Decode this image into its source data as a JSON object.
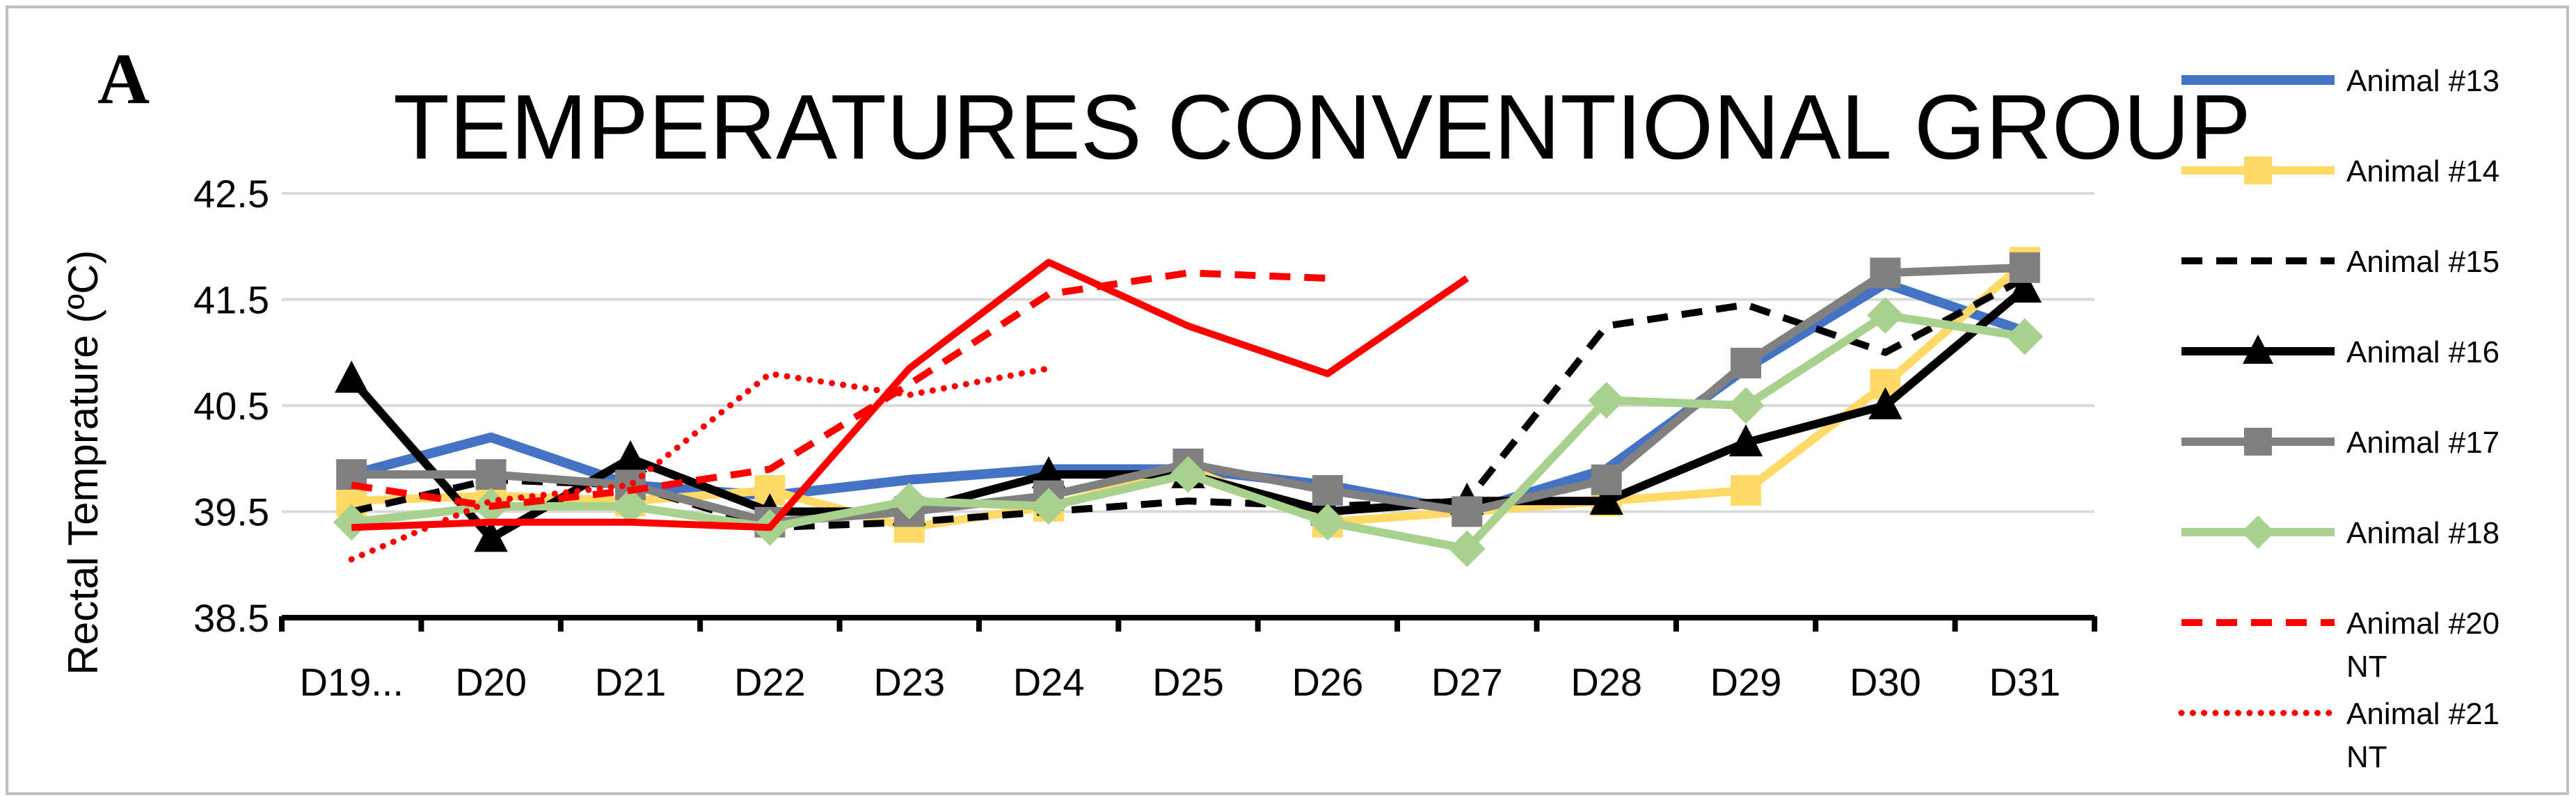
{
  "panel_label": "A",
  "chart_data": {
    "type": "line",
    "title": "TEMPERATURES CONVENTIONAL GROUP",
    "xlabel": "",
    "ylabel": "Rectal Temprature (ºC)",
    "ylim": [
      38.5,
      42.5
    ],
    "yticks": [
      "42.5",
      "41.5",
      "40.5",
      "39.5",
      "38.5"
    ],
    "grid": true,
    "legend_position": "right",
    "categories": [
      "D19...",
      "D20",
      "D21",
      "D22",
      "D23",
      "D24",
      "D25",
      "D26",
      "D27",
      "D28",
      "D29",
      "D30",
      "D31"
    ],
    "series": [
      {
        "name": "Animal #13",
        "color": "#4472c4",
        "dash": "solid",
        "width": 14,
        "marker": "none",
        "values": [
          39.85,
          40.2,
          39.75,
          39.65,
          39.8,
          39.9,
          39.9,
          39.75,
          39.5,
          39.9,
          40.85,
          41.65,
          41.2
        ]
      },
      {
        "name": "Animal #14",
        "color": "#ffd966",
        "dash": "solid",
        "width": 12,
        "marker": "square",
        "values": [
          39.6,
          39.65,
          39.6,
          39.7,
          39.35,
          39.55,
          39.9,
          39.4,
          39.5,
          39.6,
          39.7,
          40.7,
          41.85
        ]
      },
      {
        "name": "Animal #15",
        "color": "#000000",
        "dash": "dashed",
        "width": 10,
        "marker": "none",
        "values": [
          39.5,
          39.8,
          39.75,
          39.35,
          39.4,
          39.5,
          39.6,
          39.55,
          39.6,
          41.25,
          41.45,
          41.0,
          41.7
        ]
      },
      {
        "name": "Animal #16",
        "color": "#000000",
        "dash": "solid",
        "width": 12,
        "marker": "triangle",
        "values": [
          40.75,
          39.25,
          40.0,
          39.5,
          39.5,
          39.85,
          39.85,
          39.5,
          39.6,
          39.6,
          40.15,
          40.5,
          41.6
        ]
      },
      {
        "name": "Animal #17",
        "color": "#808080",
        "dash": "solid",
        "width": 12,
        "marker": "square",
        "values": [
          39.85,
          39.85,
          39.75,
          39.4,
          39.5,
          39.65,
          39.95,
          39.7,
          39.5,
          39.8,
          40.9,
          41.75,
          41.8
        ]
      },
      {
        "name": "Animal #18",
        "color": "#a9d18e",
        "dash": "solid",
        "width": 12,
        "marker": "diamond",
        "values": [
          39.4,
          39.55,
          39.55,
          39.35,
          39.6,
          39.55,
          39.85,
          39.4,
          39.15,
          40.55,
          40.5,
          41.35,
          41.15
        ]
      },
      {
        "name": "Animal #20 NT",
        "color": "#ff0000",
        "dash": "dashed",
        "width": 10,
        "marker": "none",
        "values": [
          39.75,
          39.55,
          39.7,
          39.9,
          40.7,
          41.55,
          41.75,
          41.7,
          null,
          null,
          null,
          null,
          null
        ]
      },
      {
        "name": "Animal #21 NT",
        "color": "#ff0000",
        "dash": "dotted",
        "width": 9,
        "marker": "none",
        "values": [
          39.05,
          39.6,
          39.75,
          40.8,
          40.6,
          40.85,
          null,
          null,
          null,
          null,
          null,
          null,
          null
        ]
      },
      {
        "name": "",
        "color": "#ff0000",
        "dash": "solid",
        "width": 10,
        "marker": "none",
        "values": [
          39.35,
          39.4,
          39.4,
          39.35,
          40.85,
          41.85,
          41.25,
          40.8,
          41.7,
          null,
          null,
          null,
          null
        ]
      }
    ]
  }
}
